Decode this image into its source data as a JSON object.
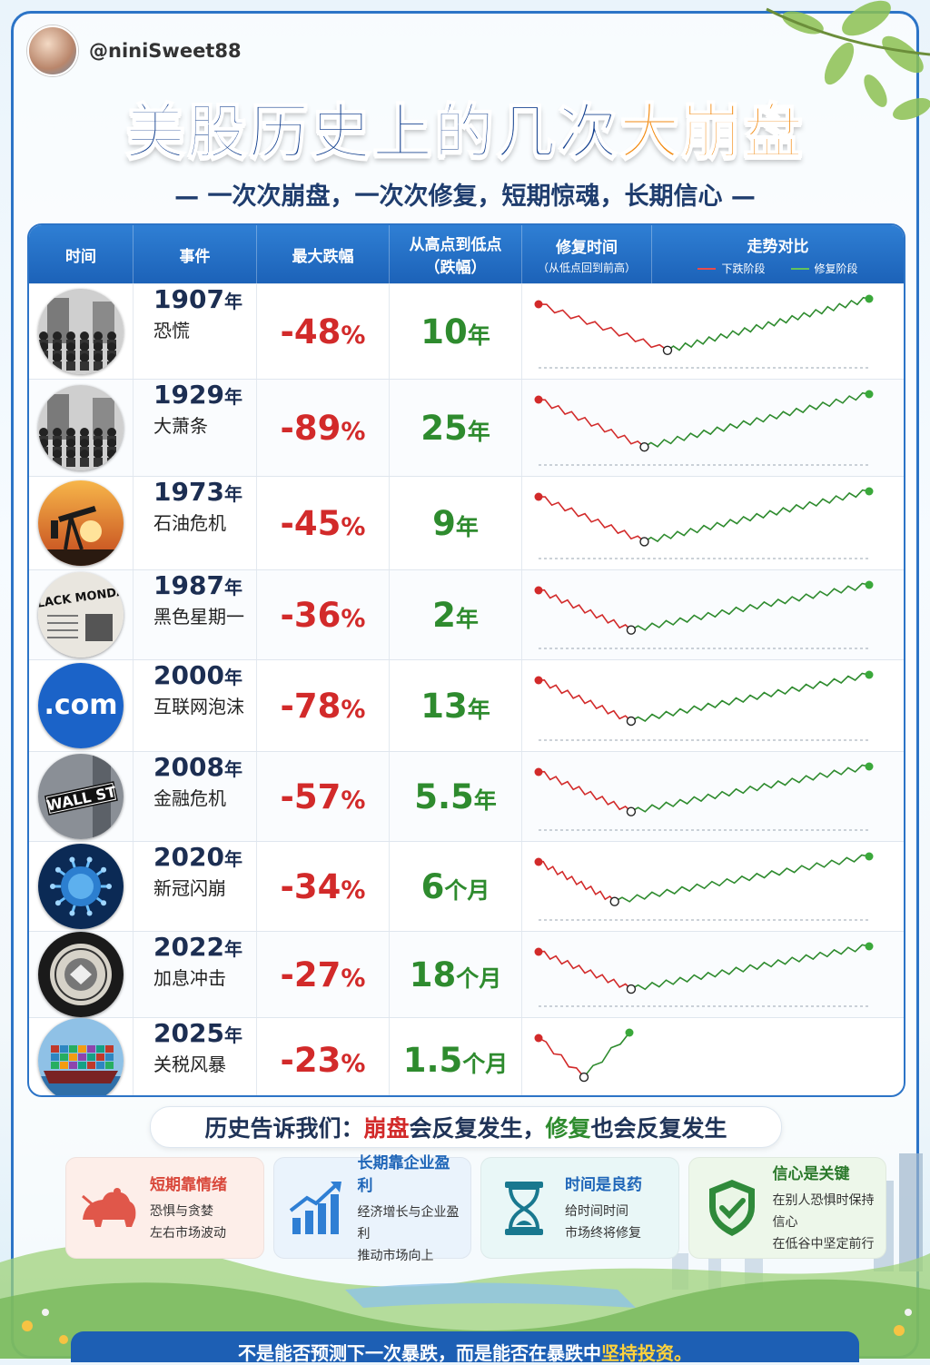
{
  "author": {
    "handle": "@niniSweet88"
  },
  "title": {
    "main": "美股历史上的几次",
    "highlight": "大崩盘"
  },
  "subtitle": "— 一次次崩盘，一次次修复，短期惊魂，长期信心 —",
  "table": {
    "headers": {
      "time": "时间",
      "event": "事件",
      "max_drop": "最大跌幅",
      "peak_to_trough": "从高点到低点",
      "peak_to_trough_sub": "（跌幅）",
      "recovery": "修复时间",
      "recovery_sub": "（从低点回到前高）",
      "trend": "走势对比",
      "legend_down": "下跌阶段",
      "legend_up": "修复阶段"
    },
    "colors": {
      "down": "#d22a2a",
      "up": "#2e8b2e"
    },
    "rows": [
      {
        "year": "1907",
        "year_unit": "年",
        "event": "恐慌",
        "drop": "-48",
        "pct": "%",
        "recovery": "10",
        "recovery_unit": "年",
        "thumb": "crowd-street-icon",
        "trough_pos": 0.39,
        "trough_depth": 0.7
      },
      {
        "year": "1929",
        "year_unit": "年",
        "event": "大萧条",
        "drop": "-89",
        "pct": "%",
        "recovery": "25",
        "recovery_unit": "年",
        "thumb": "crowd-icon",
        "trough_pos": 0.32,
        "trough_depth": 0.7
      },
      {
        "year": "1973",
        "year_unit": "年",
        "event": "石油危机",
        "drop": "-45",
        "pct": "%",
        "recovery": "9",
        "recovery_unit": "年",
        "thumb": "oil-pump-icon",
        "trough_pos": 0.32,
        "trough_depth": 0.7
      },
      {
        "year": "1987",
        "year_unit": "年",
        "event": "黑色星期一",
        "drop": "-36",
        "pct": "%",
        "recovery": "2",
        "recovery_unit": "年",
        "thumb": "newspaper-icon",
        "thumb_text": "BLACK MONDAY",
        "trough_pos": 0.28,
        "trough_depth": 0.65
      },
      {
        "year": "2000",
        "year_unit": "年",
        "event": "互联网泡沫",
        "drop": "-78",
        "pct": "%",
        "recovery": "13",
        "recovery_unit": "年",
        "thumb": "dotcom-icon",
        "thumb_text": ".com",
        "trough_pos": 0.28,
        "trough_depth": 0.65
      },
      {
        "year": "2008",
        "year_unit": "年",
        "event": "金融危机",
        "drop": "-57",
        "pct": "%",
        "recovery": "5.5",
        "recovery_unit": "年",
        "thumb": "wall-street-sign-icon",
        "thumb_text": "WALL ST",
        "trough_pos": 0.28,
        "trough_depth": 0.65
      },
      {
        "year": "2020",
        "year_unit": "年",
        "event": "新冠闪崩",
        "drop": "-34",
        "pct": "%",
        "recovery": "6",
        "recovery_unit": "个月",
        "thumb": "virus-icon",
        "trough_pos": 0.23,
        "trough_depth": 0.65
      },
      {
        "year": "2022",
        "year_unit": "年",
        "event": "加息冲击",
        "drop": "-27",
        "pct": "%",
        "recovery": "18",
        "recovery_unit": "个月",
        "thumb": "fed-seal-icon",
        "trough_pos": 0.28,
        "trough_depth": 0.65
      },
      {
        "year": "2025",
        "year_unit": "年",
        "event": "关税风暴",
        "drop": "-23",
        "pct": "%",
        "recovery": "1.5",
        "recovery_unit": "个月",
        "thumb": "cargo-ship-icon",
        "trough_pos": 0.5,
        "trough_depth": 0.7,
        "short": true
      }
    ]
  },
  "banner": {
    "prefix": "历史告诉我们：",
    "red": "崩盘",
    "mid": "会反复发生，",
    "green": "修复",
    "suffix": "也会反复发生"
  },
  "cards": [
    {
      "title": "短期靠情绪",
      "line1": "恐惧与贪婪",
      "line2": "左右市场波动",
      "icon": "bear-icon"
    },
    {
      "title": "长期靠企业盈利",
      "line1": "经济增长与企业盈利",
      "line2": "推动市场向上",
      "icon": "bar-growth-icon"
    },
    {
      "title": "时间是良药",
      "line1": "给时间时间",
      "line2": "市场终将修复",
      "icon": "hourglass-icon"
    },
    {
      "title": "信心是关键",
      "line1": "在别人恐惧时保持信心",
      "line2": "在低谷中坚定前行",
      "icon": "shield-check-icon"
    }
  ],
  "footer": {
    "text": "不是能否预测下一次暴跌，而是能否在暴跌中",
    "highlight": "坚持投资。"
  }
}
